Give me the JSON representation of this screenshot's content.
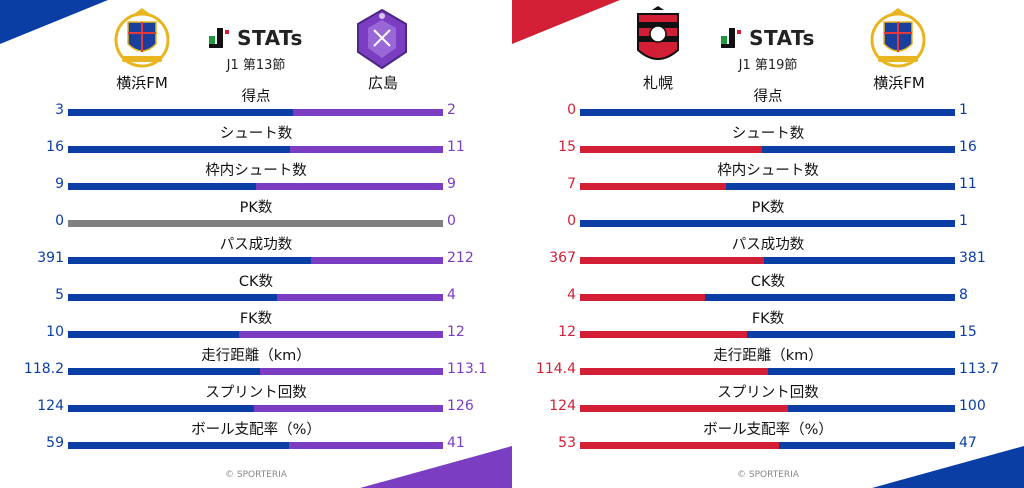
{
  "colors": {
    "yokohama": "#0a3ea5",
    "hiroshima": "#7b3ec2",
    "sapporo": "#d21f35",
    "neutral": "#808080"
  },
  "panels": [
    {
      "brand": "STATs",
      "round": "J1 第13節",
      "home": {
        "name": "横浜FM",
        "logo": "yokohama-fm-crest",
        "color": "#0a3ea5"
      },
      "away": {
        "name": "広島",
        "logo": "hiroshima-crest",
        "color": "#7b3ec2"
      },
      "stats": [
        {
          "label": "得点",
          "home": "3",
          "away": "2",
          "home_share": 0.6
        },
        {
          "label": "シュート数",
          "home": "16",
          "away": "11",
          "home_share": 0.593
        },
        {
          "label": "枠内シュート数",
          "home": "9",
          "away": "9",
          "home_share": 0.5
        },
        {
          "label": "PK数",
          "home": "0",
          "away": "0",
          "home_share": null
        },
        {
          "label": "パス成功数",
          "home": "391",
          "away": "212",
          "home_share": 0.648
        },
        {
          "label": "CK数",
          "home": "5",
          "away": "4",
          "home_share": 0.556
        },
        {
          "label": "FK数",
          "home": "10",
          "away": "12",
          "home_share": 0.455
        },
        {
          "label": "走行距離（km）",
          "home": "118.2",
          "away": "113.1",
          "home_share": 0.511
        },
        {
          "label": "スプリント回数",
          "home": "124",
          "away": "126",
          "home_share": 0.496
        },
        {
          "label": "ボール支配率（%）",
          "home": "59",
          "away": "41",
          "home_share": 0.59
        }
      ],
      "footer": "© SPORTERIA"
    },
    {
      "brand": "STATs",
      "round": "J1 第19節",
      "home": {
        "name": "札幌",
        "logo": "sapporo-crest",
        "color": "#d21f35"
      },
      "away": {
        "name": "横浜FM",
        "logo": "yokohama-fm-crest",
        "color": "#0a3ea5"
      },
      "stats": [
        {
          "label": "得点",
          "home": "0",
          "away": "1",
          "home_share": 0.0
        },
        {
          "label": "シュート数",
          "home": "15",
          "away": "16",
          "home_share": 0.484
        },
        {
          "label": "枠内シュート数",
          "home": "7",
          "away": "11",
          "home_share": 0.389
        },
        {
          "label": "PK数",
          "home": "0",
          "away": "1",
          "home_share": 0.0
        },
        {
          "label": "パス成功数",
          "home": "367",
          "away": "381",
          "home_share": 0.491
        },
        {
          "label": "CK数",
          "home": "4",
          "away": "8",
          "home_share": 0.333
        },
        {
          "label": "FK数",
          "home": "12",
          "away": "15",
          "home_share": 0.444
        },
        {
          "label": "走行距離（km）",
          "home": "114.4",
          "away": "113.7",
          "home_share": 0.502
        },
        {
          "label": "スプリント回数",
          "home": "124",
          "away": "100",
          "home_share": 0.554
        },
        {
          "label": "ボール支配率（%）",
          "home": "53",
          "away": "47",
          "home_share": 0.53
        }
      ],
      "footer": "© SPORTERIA"
    }
  ]
}
